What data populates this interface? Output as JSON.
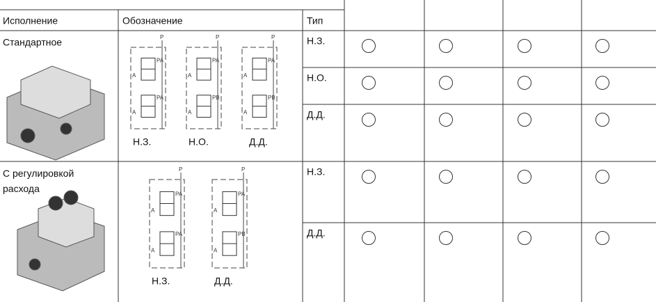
{
  "table": {
    "header": [
      "Исполнение",
      "Обозначение",
      "Тип"
    ],
    "groups": [
      {
        "execution": "Стандартное",
        "symbols": [
          "Н.З.",
          "Н.О.",
          "Д.Д."
        ],
        "types": [
          "Н.З.",
          "Н.О.",
          "Д.Д."
        ]
      },
      {
        "execution": "С регулировкой расхода",
        "symbols": [
          "Н.З.",
          "Д.Д."
        ],
        "types": [
          "Н.З.",
          "Д.Д."
        ]
      }
    ],
    "ports": [
      "P",
      "PA",
      "PB",
      "A"
    ]
  }
}
